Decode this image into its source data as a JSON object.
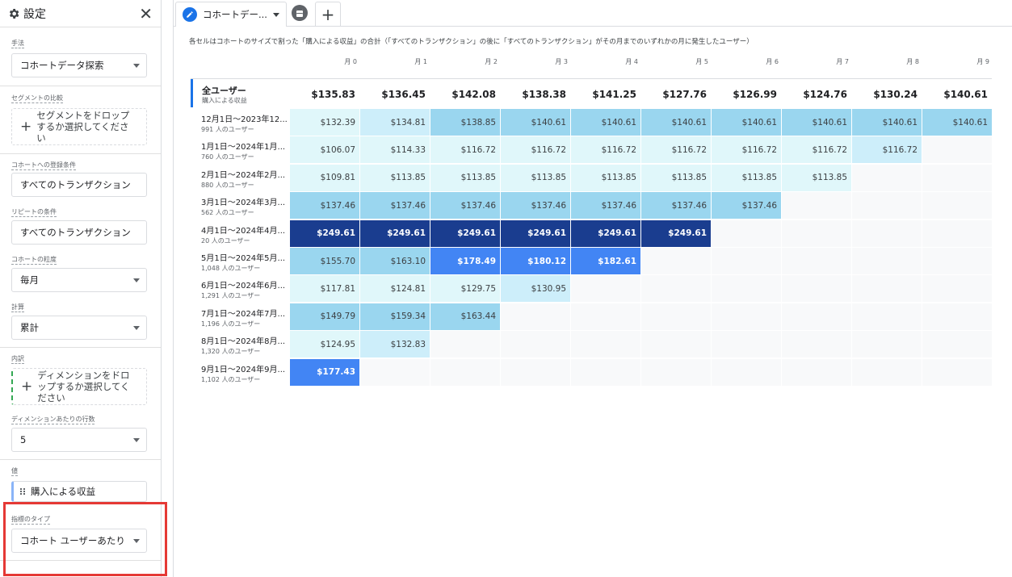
{
  "sidebar": {
    "title": "設定",
    "method_label": "手法",
    "method_value": "コホートデータ探索",
    "segment_label": "セグメントの比較",
    "segment_drop": "セグメントをドロップするか選択してください",
    "inclusion_label": "コホートへの登録条件",
    "inclusion_value": "すべてのトランザクション",
    "return_label": "リピートの条件",
    "return_value": "すべてのトランザクション",
    "granularity_label": "コホートの粒度",
    "granularity_value": "毎月",
    "calc_label": "計算",
    "calc_value": "累計",
    "breakdown_label": "内訳",
    "breakdown_drop": "ディメンションをドロップするか選択してください",
    "rows_label": "ディメンションあたりの行数",
    "rows_value": "5",
    "values_label": "値",
    "values_chip": "購入による収益",
    "metric_type_label": "指標のタイプ",
    "metric_type_value": "コホート ユーザーあたり"
  },
  "tabs": {
    "active_label": "コホートデー...",
    "add_label": "+"
  },
  "table": {
    "description": "各セルはコホートのサイズで割った「購入による収益」の合計（「すべてのトランザクション」の後に「すべてのトランザクション」がその月までのいずれかの月に発生したユーザー）",
    "months": [
      "月 0",
      "月 1",
      "月 2",
      "月 3",
      "月 4",
      "月 5",
      "月 6",
      "月 7",
      "月 8",
      "月 9"
    ],
    "all_users_label": "全ユーザー",
    "all_users_sub": "購入による収益",
    "all_users_values": [
      "$135.83",
      "$136.45",
      "$142.08",
      "$138.38",
      "$141.25",
      "$127.76",
      "$126.99",
      "$124.76",
      "$130.24",
      "$140.61"
    ],
    "rows": [
      {
        "label": "12月1日～2023年12...",
        "users": "991 人のユーザー",
        "values": [
          "$132.39",
          "$134.81",
          "$138.85",
          "$140.61",
          "$140.61",
          "$140.61",
          "$140.61",
          "$140.61",
          "$140.61",
          "$140.61"
        ],
        "shades": [
          0,
          1,
          2,
          2,
          2,
          2,
          2,
          2,
          2,
          2
        ]
      },
      {
        "label": "1月1日～2024年1月...",
        "users": "760 人のユーザー",
        "values": [
          "$106.07",
          "$114.33",
          "$116.72",
          "$116.72",
          "$116.72",
          "$116.72",
          "$116.72",
          "$116.72",
          "$116.72"
        ],
        "shades": [
          0,
          0,
          0,
          0,
          0,
          0,
          0,
          0,
          1
        ]
      },
      {
        "label": "2月1日～2024年2月...",
        "users": "880 人のユーザー",
        "values": [
          "$109.81",
          "$113.85",
          "$113.85",
          "$113.85",
          "$113.85",
          "$113.85",
          "$113.85",
          "$113.85"
        ],
        "shades": [
          0,
          0,
          0,
          0,
          0,
          0,
          0,
          0
        ]
      },
      {
        "label": "3月1日～2024年3月...",
        "users": "562 人のユーザー",
        "values": [
          "$137.46",
          "$137.46",
          "$137.46",
          "$137.46",
          "$137.46",
          "$137.46",
          "$137.46"
        ],
        "shades": [
          2,
          2,
          2,
          2,
          2,
          2,
          2
        ]
      },
      {
        "label": "4月1日～2024年4月...",
        "users": "20 人のユーザー",
        "values": [
          "$249.61",
          "$249.61",
          "$249.61",
          "$249.61",
          "$249.61",
          "$249.61"
        ],
        "shades": [
          4,
          4,
          4,
          4,
          4,
          4
        ]
      },
      {
        "label": "5月1日～2024年5月...",
        "users": "1,048 人のユーザー",
        "values": [
          "$155.70",
          "$163.10",
          "$178.49",
          "$180.12",
          "$182.61"
        ],
        "shades": [
          2,
          2,
          3,
          3,
          3
        ]
      },
      {
        "label": "6月1日～2024年6月...",
        "users": "1,291 人のユーザー",
        "values": [
          "$117.81",
          "$124.81",
          "$129.75",
          "$130.95"
        ],
        "shades": [
          0,
          0,
          0,
          1
        ]
      },
      {
        "label": "7月1日～2024年7月...",
        "users": "1,196 人のユーザー",
        "values": [
          "$149.79",
          "$159.34",
          "$163.44"
        ],
        "shades": [
          2,
          2,
          2
        ]
      },
      {
        "label": "8月1日～2024年8月...",
        "users": "1,320 人のユーザー",
        "values": [
          "$124.95",
          "$132.83"
        ],
        "shades": [
          0,
          1
        ]
      },
      {
        "label": "9月1日～2024年9月...",
        "users": "1,102 人のユーザー",
        "values": [
          "$177.43"
        ],
        "shades": [
          3
        ]
      }
    ]
  },
  "colors": {
    "accent": "#1a73e8",
    "highlight_box": "#e53935"
  }
}
